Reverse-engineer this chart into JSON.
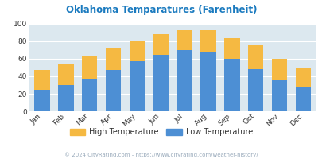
{
  "title": "Oklahoma Temparatures (Farenheit)",
  "months": [
    "Jan",
    "Feb",
    "Mar",
    "Apr",
    "May",
    "Jun",
    "Jul",
    "Aug",
    "Sep",
    "Oct",
    "Nov",
    "Dec"
  ],
  "low_temps": [
    25,
    30,
    37,
    47,
    57,
    65,
    70,
    68,
    60,
    48,
    36,
    28
  ],
  "high_temps": [
    47,
    55,
    63,
    73,
    80,
    88,
    93,
    93,
    84,
    75,
    60,
    50
  ],
  "low_color": "#4d8fd4",
  "high_color": "#f5b942",
  "bg_color": "#dce8ef",
  "title_color": "#1a7abf",
  "ylim": [
    0,
    100
  ],
  "yticks": [
    0,
    20,
    40,
    60,
    80,
    100
  ],
  "legend_high": "High Temperature",
  "legend_low": "Low Temperature",
  "footer": "© 2024 CityRating.com - https://www.cityrating.com/weather-history/",
  "footer_color": "#99aabb",
  "bar_width": 0.65,
  "legend_text_color": "#333333"
}
